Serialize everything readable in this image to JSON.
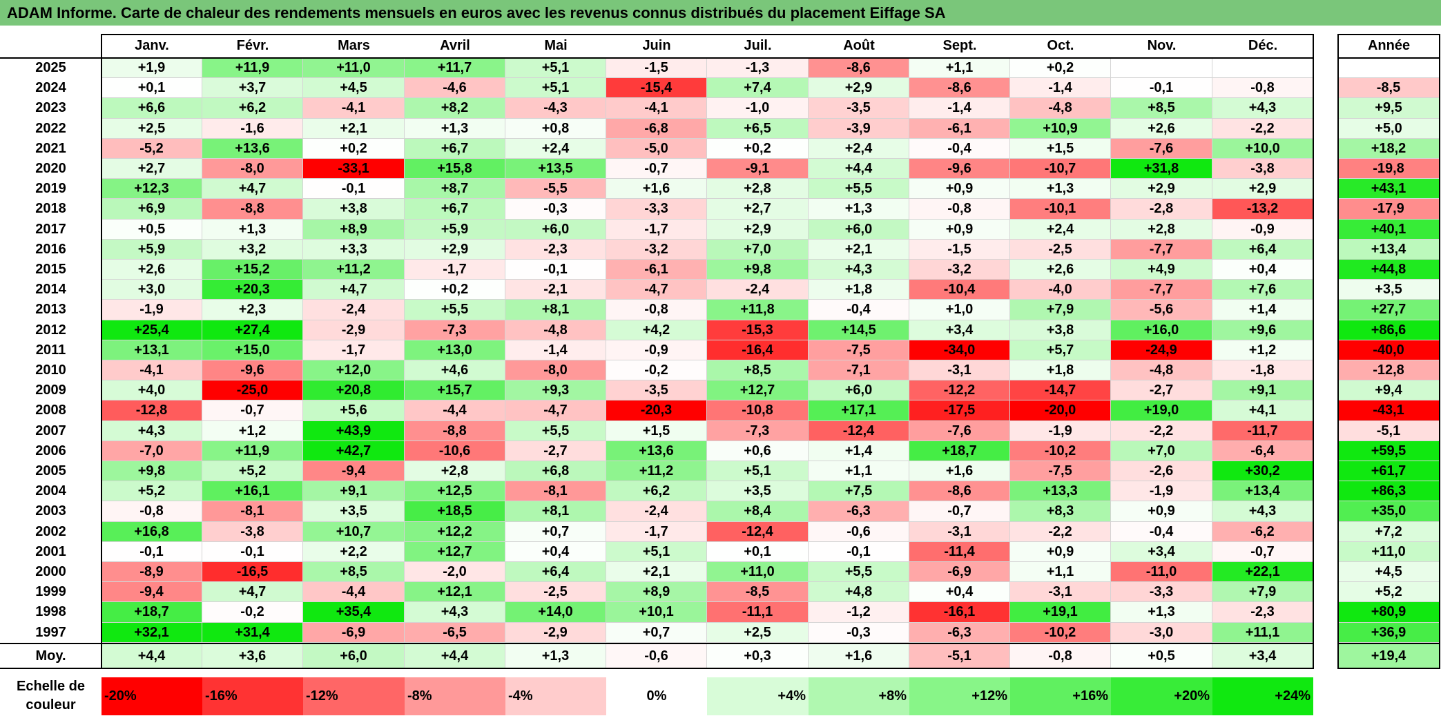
{
  "title": "ADAM Informe. Carte de chaleur des rendements mensuels en euros avec les revenus connus distribués du placement Eiffage SA",
  "chart_data": {
    "type": "heatmap",
    "title": "ADAM Informe. Carte de chaleur des rendements mensuels en euros avec les revenus connus distribués du placement Eiffage SA",
    "months": [
      "Janv.",
      "Févr.",
      "Mars",
      "Avril",
      "Mai",
      "Juin",
      "Juil.",
      "Août",
      "Sept.",
      "Oct.",
      "Nov.",
      "Déc."
    ],
    "annual_header": "Année",
    "rows": [
      {
        "year": "2025",
        "values": [
          "+1,9",
          "+11,9",
          "+11,0",
          "+11,7",
          "+5,1",
          "-1,5",
          "-1,3",
          "-8,6",
          "+1,1",
          "+0,2",
          "",
          ""
        ],
        "annual": ""
      },
      {
        "year": "2024",
        "values": [
          "+0,1",
          "+3,7",
          "+4,5",
          "-4,6",
          "+5,1",
          "-15,4",
          "+7,4",
          "+2,9",
          "-8,6",
          "-1,4",
          "-0,1",
          "-0,8"
        ],
        "annual": "-8,5"
      },
      {
        "year": "2023",
        "values": [
          "+6,6",
          "+6,2",
          "-4,1",
          "+8,2",
          "-4,3",
          "-4,1",
          "-1,0",
          "-3,5",
          "-1,4",
          "-4,8",
          "+8,5",
          "+4,3"
        ],
        "annual": "+9,5"
      },
      {
        "year": "2022",
        "values": [
          "+2,5",
          "-1,6",
          "+2,1",
          "+1,3",
          "+0,8",
          "-6,8",
          "+6,5",
          "-3,9",
          "-6,1",
          "+10,9",
          "+2,6",
          "-2,2"
        ],
        "annual": "+5,0"
      },
      {
        "year": "2021",
        "values": [
          "-5,2",
          "+13,6",
          "+0,2",
          "+6,7",
          "+2,4",
          "-5,0",
          "+0,2",
          "+2,4",
          "-0,4",
          "+1,5",
          "-7,6",
          "+10,0"
        ],
        "annual": "+18,2"
      },
      {
        "year": "2020",
        "values": [
          "+2,7",
          "-8,0",
          "-33,1",
          "+15,8",
          "+13,5",
          "-0,7",
          "-9,1",
          "+4,4",
          "-9,6",
          "-10,7",
          "+31,8",
          "-3,8"
        ],
        "annual": "-19,8"
      },
      {
        "year": "2019",
        "values": [
          "+12,3",
          "+4,7",
          "-0,1",
          "+8,7",
          "-5,5",
          "+1,6",
          "+2,8",
          "+5,5",
          "+0,9",
          "+1,3",
          "+2,9",
          "+2,9"
        ],
        "annual": "+43,1"
      },
      {
        "year": "2018",
        "values": [
          "+6,9",
          "-8,8",
          "+3,8",
          "+6,7",
          "-0,3",
          "-3,3",
          "+2,7",
          "+1,3",
          "-0,8",
          "-10,1",
          "-2,8",
          "-13,2"
        ],
        "annual": "-17,9"
      },
      {
        "year": "2017",
        "values": [
          "+0,5",
          "+1,3",
          "+8,9",
          "+5,9",
          "+6,0",
          "-1,7",
          "+2,9",
          "+6,0",
          "+0,9",
          "+2,4",
          "+2,8",
          "-0,9"
        ],
        "annual": "+40,1"
      },
      {
        "year": "2016",
        "values": [
          "+5,9",
          "+3,2",
          "+3,3",
          "+2,9",
          "-2,3",
          "-3,2",
          "+7,0",
          "+2,1",
          "-1,5",
          "-2,5",
          "-7,7",
          "+6,4"
        ],
        "annual": "+13,4"
      },
      {
        "year": "2015",
        "values": [
          "+2,6",
          "+15,2",
          "+11,2",
          "-1,7",
          "-0,1",
          "-6,1",
          "+9,8",
          "+4,3",
          "-3,2",
          "+2,6",
          "+4,9",
          "+0,4"
        ],
        "annual": "+44,8"
      },
      {
        "year": "2014",
        "values": [
          "+3,0",
          "+20,3",
          "+4,7",
          "+0,2",
          "-2,1",
          "-4,7",
          "-2,4",
          "+1,8",
          "-10,4",
          "-4,0",
          "-7,7",
          "+7,6"
        ],
        "annual": "+3,5"
      },
      {
        "year": "2013",
        "values": [
          "-1,9",
          "+2,3",
          "-2,4",
          "+5,5",
          "+8,1",
          "-0,8",
          "+11,8",
          "-0,4",
          "+1,0",
          "+7,9",
          "-5,6",
          "+1,4"
        ],
        "annual": "+27,7"
      },
      {
        "year": "2012",
        "values": [
          "+25,4",
          "+27,4",
          "-2,9",
          "-7,3",
          "-4,8",
          "+4,2",
          "-15,3",
          "+14,5",
          "+3,4",
          "+3,8",
          "+16,0",
          "+9,6"
        ],
        "annual": "+86,6"
      },
      {
        "year": "2011",
        "values": [
          "+13,1",
          "+15,0",
          "-1,7",
          "+13,0",
          "-1,4",
          "-0,9",
          "-16,4",
          "-7,5",
          "-34,0",
          "+5,7",
          "-24,9",
          "+1,2"
        ],
        "annual": "-40,0"
      },
      {
        "year": "2010",
        "values": [
          "-4,1",
          "-9,6",
          "+12,0",
          "+4,6",
          "-8,0",
          "-0,2",
          "+8,5",
          "-7,1",
          "-3,1",
          "+1,8",
          "-4,8",
          "-1,8"
        ],
        "annual": "-12,8"
      },
      {
        "year": "2009",
        "values": [
          "+4,0",
          "-25,0",
          "+20,8",
          "+15,7",
          "+9,3",
          "-3,5",
          "+12,7",
          "+6,0",
          "-12,2",
          "-14,7",
          "-2,7",
          "+9,1"
        ],
        "annual": "+9,4"
      },
      {
        "year": "2008",
        "values": [
          "-12,8",
          "-0,7",
          "+5,6",
          "-4,4",
          "-4,7",
          "-20,3",
          "-10,8",
          "+17,1",
          "-17,5",
          "-20,0",
          "+19,0",
          "+4,1"
        ],
        "annual": "-43,1"
      },
      {
        "year": "2007",
        "values": [
          "+4,3",
          "+1,2",
          "+43,9",
          "-8,8",
          "+5,5",
          "+1,5",
          "-7,3",
          "-12,4",
          "-7,6",
          "-1,9",
          "-2,2",
          "-11,7"
        ],
        "annual": "-5,1"
      },
      {
        "year": "2006",
        "values": [
          "-7,0",
          "+11,9",
          "+42,7",
          "-10,6",
          "-2,7",
          "+13,6",
          "+0,6",
          "+1,4",
          "+18,7",
          "-10,2",
          "+7,0",
          "-6,4"
        ],
        "annual": "+59,5"
      },
      {
        "year": "2005",
        "values": [
          "+9,8",
          "+5,2",
          "-9,4",
          "+2,8",
          "+6,8",
          "+11,2",
          "+5,1",
          "+1,1",
          "+1,6",
          "-7,5",
          "-2,6",
          "+30,2"
        ],
        "annual": "+61,7"
      },
      {
        "year": "2004",
        "values": [
          "+5,2",
          "+16,1",
          "+9,1",
          "+12,5",
          "-8,1",
          "+6,2",
          "+3,5",
          "+7,5",
          "-8,6",
          "+13,3",
          "-1,9",
          "+13,4"
        ],
        "annual": "+86,3"
      },
      {
        "year": "2003",
        "values": [
          "-0,8",
          "-8,1",
          "+3,5",
          "+18,5",
          "+8,1",
          "-2,4",
          "+8,4",
          "-6,3",
          "-0,7",
          "+8,3",
          "+0,9",
          "+4,3"
        ],
        "annual": "+35,0"
      },
      {
        "year": "2002",
        "values": [
          "+16,8",
          "-3,8",
          "+10,7",
          "+12,2",
          "+0,7",
          "-1,7",
          "-12,4",
          "-0,6",
          "-3,1",
          "-2,2",
          "-0,4",
          "-6,2"
        ],
        "annual": "+7,2"
      },
      {
        "year": "2001",
        "values": [
          "-0,1",
          "-0,1",
          "+2,2",
          "+12,7",
          "+0,4",
          "+5,1",
          "+0,1",
          "-0,1",
          "-11,4",
          "+0,9",
          "+3,4",
          "-0,7"
        ],
        "annual": "+11,0"
      },
      {
        "year": "2000",
        "values": [
          "-8,9",
          "-16,5",
          "+8,5",
          "-2,0",
          "+6,4",
          "+2,1",
          "+11,0",
          "+5,5",
          "-6,9",
          "+1,1",
          "-11,0",
          "+22,1"
        ],
        "annual": "+4,5"
      },
      {
        "year": "1999",
        "values": [
          "-9,4",
          "+4,7",
          "-4,4",
          "+12,1",
          "-2,5",
          "+8,9",
          "-8,5",
          "+4,8",
          "+0,4",
          "-3,1",
          "-3,3",
          "+7,9"
        ],
        "annual": "+5,2"
      },
      {
        "year": "1998",
        "values": [
          "+18,7",
          "-0,2",
          "+35,4",
          "+4,3",
          "+14,0",
          "+10,1",
          "-11,1",
          "-1,2",
          "-16,1",
          "+19,1",
          "+1,3",
          "-2,3"
        ],
        "annual": "+80,9"
      },
      {
        "year": "1997",
        "values": [
          "+32,1",
          "+31,4",
          "-6,9",
          "-6,5",
          "-2,9",
          "+0,7",
          "+2,5",
          "-0,3",
          "-6,3",
          "-10,2",
          "-3,0",
          "+11,1"
        ],
        "annual": "+36,9"
      }
    ],
    "average": {
      "label": "Moy.",
      "values": [
        "+4,4",
        "+3,6",
        "+6,0",
        "+4,4",
        "+1,3",
        "-0,6",
        "+0,3",
        "+1,6",
        "-5,1",
        "-0,8",
        "+0,5",
        "+3,4"
      ],
      "annual": "+19,4"
    },
    "color_scale": {
      "label": "Echelle de couleur",
      "steps": [
        {
          "label": "-20%",
          "value": -20,
          "color": "#ff0000",
          "align": "left"
        },
        {
          "label": "-16%",
          "value": -16,
          "color": "#ff3333",
          "align": "left"
        },
        {
          "label": "-12%",
          "value": -12,
          "color": "#ff6666",
          "align": "left"
        },
        {
          "label": "-8%",
          "value": -8,
          "color": "#ff9999",
          "align": "left"
        },
        {
          "label": "-4%",
          "value": -4,
          "color": "#ffcccc",
          "align": "left"
        },
        {
          "label": "0%",
          "value": 0,
          "color": "#ffffff",
          "align": "center"
        },
        {
          "label": "+4%",
          "value": 4,
          "color": "#d8fcd8",
          "align": "right"
        },
        {
          "label": "+8%",
          "value": 8,
          "color": "#b0f8b0",
          "align": "right"
        },
        {
          "label": "+12%",
          "value": 12,
          "color": "#88f588",
          "align": "right"
        },
        {
          "label": "+16%",
          "value": 16,
          "color": "#60f060",
          "align": "right"
        },
        {
          "label": "+20%",
          "value": 20,
          "color": "#38ec38",
          "align": "right"
        },
        {
          "label": "+24%",
          "value": 24,
          "color": "#10e810",
          "align": "right"
        }
      ]
    }
  }
}
